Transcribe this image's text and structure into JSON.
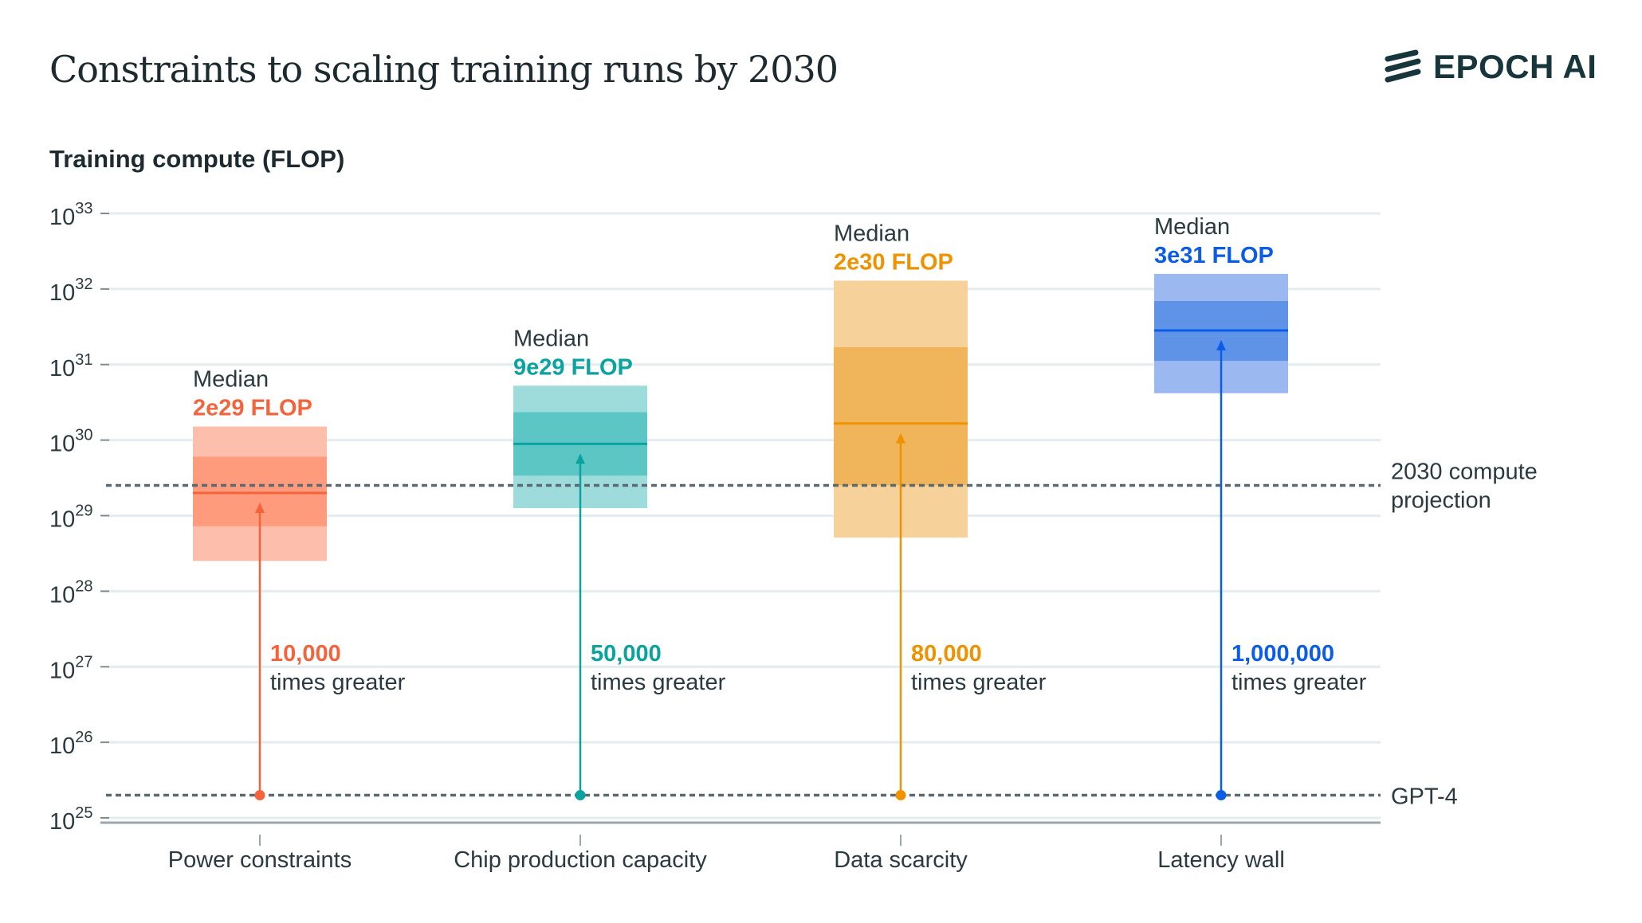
{
  "title": "Constraints to scaling training runs by 2030",
  "logo": {
    "text": "EPOCH AI",
    "color": "#17363b"
  },
  "chart_data": {
    "type": "box",
    "title": "Constraints to scaling training runs by 2030",
    "ylabel": "Training compute (FLOP)",
    "yscale": "log",
    "ylim_log10": [
      25,
      33
    ],
    "yticks": [
      {
        "base": "10",
        "exp": "25"
      },
      {
        "base": "10",
        "exp": "26"
      },
      {
        "base": "10",
        "exp": "27"
      },
      {
        "base": "10",
        "exp": "28"
      },
      {
        "base": "10",
        "exp": "29"
      },
      {
        "base": "10",
        "exp": "30"
      },
      {
        "base": "10",
        "exp": "31"
      },
      {
        "base": "10",
        "exp": "32"
      },
      {
        "base": "10",
        "exp": "33"
      }
    ],
    "grid": true,
    "reference_lines": [
      {
        "label_line1": "2030 compute",
        "label_line2": "projection",
        "value_log10": 29.4
      },
      {
        "label_line1": "GPT-4",
        "label_line2": "",
        "value_log10": 25.3
      }
    ],
    "categories": [
      {
        "name": "Power constraints",
        "color": "#f4643c",
        "outer": "#fdbfab",
        "inner": "#fd9b7c",
        "outer_range_log10": [
          28.4,
          30.18
        ],
        "inner_range_log10": [
          28.86,
          29.78
        ],
        "median_log10": 29.3,
        "median_heading": "Median",
        "median_label": "2e29 FLOP",
        "multiplier": "10,000",
        "multiplier_text": "times greater"
      },
      {
        "name": "Chip production capacity",
        "color": "#0aa39f",
        "outer": "#9ddcda",
        "inner": "#5cc6c4",
        "outer_range_log10": [
          29.1,
          30.72
        ],
        "inner_range_log10": [
          29.53,
          30.37
        ],
        "median_log10": 29.95,
        "median_heading": "Median",
        "median_label": "9e29 FLOP",
        "multiplier": "50,000",
        "multiplier_text": "times greater"
      },
      {
        "name": "Data scarcity",
        "color": "#ef9200",
        "outer": "#f6d199",
        "inner": "#f0b55a",
        "outer_range_log10": [
          28.71,
          32.11
        ],
        "inner_range_log10": [
          29.4,
          31.23
        ],
        "median_log10": 30.22,
        "median_heading": "Median",
        "median_label": "2e30 FLOP",
        "multiplier": "80,000",
        "multiplier_text": "times greater"
      },
      {
        "name": "Latency wall",
        "color": "#0b5ce6",
        "outer": "#9bb8f0",
        "inner": "#5f93e8",
        "outer_range_log10": [
          30.62,
          32.2
        ],
        "inner_range_log10": [
          31.05,
          31.84
        ],
        "median_log10": 31.45,
        "median_heading": "Median",
        "median_label": "3e31 FLOP",
        "multiplier": "1,000,000",
        "multiplier_text": "times greater"
      }
    ]
  }
}
